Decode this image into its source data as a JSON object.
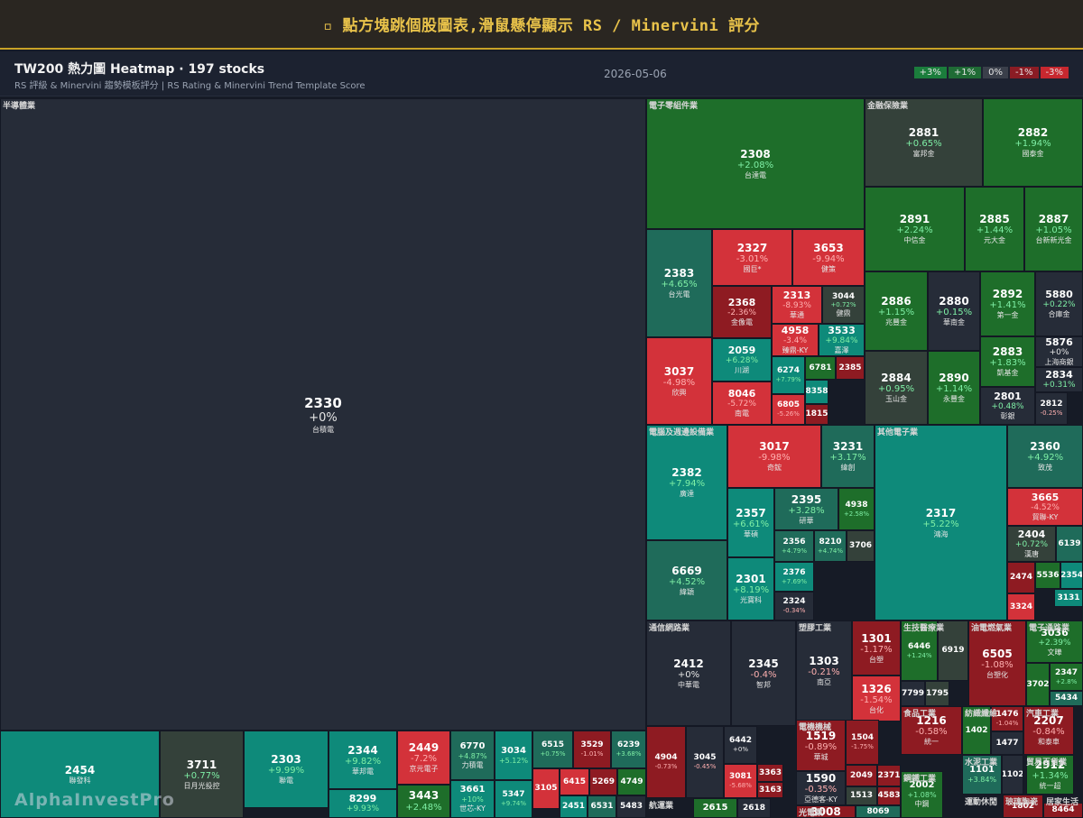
{
  "banner": {
    "icon": "▫",
    "text": "點方塊跳個股圖表,滑鼠懸停顯示 RS / Minervini 評分"
  },
  "header": {
    "title": "TW200 熱力圖 Heatmap · 197 stocks",
    "subtitle": "RS 評級 & Minervini 趨勢模板評分 | RS Rating & Minervini Trend Template Score",
    "date": "2026-05-06"
  },
  "legend": [
    {
      "label": "+3%",
      "color": "#1b7d3c"
    },
    {
      "label": "+1%",
      "color": "#1f6b35"
    },
    {
      "label": "0%",
      "color": "#3a3f4a"
    },
    {
      "label": "-1%",
      "color": "#8b1c24"
    },
    {
      "label": "-3%",
      "color": "#c7282f"
    }
  ],
  "watermark": "AlphaInvestPro",
  "sectors": [
    {
      "name": "半導體業"
    },
    {
      "name": "電子零組件業"
    },
    {
      "name": "金融保險業"
    },
    {
      "name": "電腦及週邊設備業"
    },
    {
      "name": "其他電子業"
    },
    {
      "name": "通信網路業"
    },
    {
      "name": "塑膠工業"
    },
    {
      "name": "生技醫療業"
    },
    {
      "name": "油電燃氣業"
    },
    {
      "name": "電子通路業"
    },
    {
      "name": "電機機械"
    },
    {
      "name": "食品工業"
    },
    {
      "name": "紡織纖維"
    },
    {
      "name": "汽車工業"
    },
    {
      "name": "水泥工業"
    },
    {
      "name": "貿易百貨業"
    },
    {
      "name": "鋼鐵工業"
    },
    {
      "name": "運動休閒"
    },
    {
      "name": "玻璃陶瓷"
    },
    {
      "name": "居家生活"
    },
    {
      "name": "航運業"
    },
    {
      "name": "光電業"
    }
  ],
  "tiles": [
    {
      "code": "2330",
      "chg": "+0%",
      "name": "台積電"
    },
    {
      "code": "2454",
      "chg": "",
      "name": "聯發科"
    },
    {
      "code": "3711",
      "chg": "+0.77%",
      "name": "日月光投控"
    },
    {
      "code": "2303",
      "chg": "+9.99%",
      "name": "聯電"
    },
    {
      "code": "2344",
      "chg": "+9.82%",
      "name": "華邦電"
    },
    {
      "code": "2449",
      "chg": "-7.2%",
      "name": "京元電子"
    },
    {
      "code": "6770",
      "chg": "+4.87%",
      "name": "力積電"
    },
    {
      "code": "3034",
      "chg": "+5.12%",
      "name": ""
    },
    {
      "code": "6515",
      "chg": "+0.75%",
      "name": ""
    },
    {
      "code": "3529",
      "chg": "-1.01%",
      "name": ""
    },
    {
      "code": "6239",
      "chg": "+3.68%",
      "name": ""
    },
    {
      "code": "8299",
      "chg": "+9.93%",
      "name": ""
    },
    {
      "code": "3443",
      "chg": "+2.48%",
      "name": ""
    },
    {
      "code": "3661",
      "chg": "+10%",
      "name": "世芯-KY"
    },
    {
      "code": "5347",
      "chg": "+9.74%",
      "name": ""
    },
    {
      "code": "3105",
      "chg": "",
      "name": ""
    },
    {
      "code": "6415",
      "chg": "",
      "name": ""
    },
    {
      "code": "5269",
      "chg": "",
      "name": ""
    },
    {
      "code": "4749",
      "chg": "",
      "name": ""
    },
    {
      "code": "2451",
      "chg": "",
      "name": ""
    },
    {
      "code": "6531",
      "chg": "",
      "name": ""
    },
    {
      "code": "5483",
      "chg": "",
      "name": ""
    },
    {
      "code": "2308",
      "chg": "+2.08%",
      "name": "台達電"
    },
    {
      "code": "2383",
      "chg": "+4.65%",
      "name": "台光電"
    },
    {
      "code": "2327",
      "chg": "-3.01%",
      "name": "國巨*"
    },
    {
      "code": "3653",
      "chg": "-9.94%",
      "name": "健策"
    },
    {
      "code": "2368",
      "chg": "-2.36%",
      "name": "金像電"
    },
    {
      "code": "2313",
      "chg": "-8.93%",
      "name": "華通"
    },
    {
      "code": "3044",
      "chg": "+0.72%",
      "name": "健鼎"
    },
    {
      "code": "4958",
      "chg": "-3.4%",
      "name": "臻鼎-KY"
    },
    {
      "code": "3533",
      "chg": "+9.84%",
      "name": "嘉澤"
    },
    {
      "code": "3037",
      "chg": "-4.98%",
      "name": "欣興"
    },
    {
      "code": "2059",
      "chg": "+6.28%",
      "name": "川湖"
    },
    {
      "code": "6274",
      "chg": "+7.79%",
      "name": ""
    },
    {
      "code": "6781",
      "chg": "",
      "name": ""
    },
    {
      "code": "2385",
      "chg": "",
      "name": ""
    },
    {
      "code": "8358",
      "chg": "",
      "name": ""
    },
    {
      "code": "8046",
      "chg": "-5.72%",
      "name": "南電"
    },
    {
      "code": "6805",
      "chg": "-5.26%",
      "name": ""
    },
    {
      "code": "1815",
      "chg": "",
      "name": ""
    },
    {
      "code": "2881",
      "chg": "+0.65%",
      "name": "富邦金"
    },
    {
      "code": "2882",
      "chg": "+1.94%",
      "name": "國泰金"
    },
    {
      "code": "2891",
      "chg": "+2.24%",
      "name": "中信金"
    },
    {
      "code": "2885",
      "chg": "+1.44%",
      "name": "元大金"
    },
    {
      "code": "2887",
      "chg": "+1.05%",
      "name": "台新新光金"
    },
    {
      "code": "2886",
      "chg": "+1.15%",
      "name": "兆豐金"
    },
    {
      "code": "2880",
      "chg": "+0.15%",
      "name": "華南金"
    },
    {
      "code": "2892",
      "chg": "+1.41%",
      "name": "第一金"
    },
    {
      "code": "5880",
      "chg": "+0.22%",
      "name": "合庫金"
    },
    {
      "code": "5876",
      "chg": "+0%",
      "name": "上海商銀"
    },
    {
      "code": "2883",
      "chg": "+1.83%",
      "name": "凱基金"
    },
    {
      "code": "2834",
      "chg": "+0.31%",
      "name": ""
    },
    {
      "code": "2884",
      "chg": "+0.95%",
      "name": "玉山金"
    },
    {
      "code": "2890",
      "chg": "+1.14%",
      "name": "永豐金"
    },
    {
      "code": "2801",
      "chg": "+0.48%",
      "name": "彰銀"
    },
    {
      "code": "2812",
      "chg": "-0.25%",
      "name": ""
    },
    {
      "code": "2382",
      "chg": "+7.94%",
      "name": "廣達"
    },
    {
      "code": "3017",
      "chg": "-9.98%",
      "name": "奇鋐"
    },
    {
      "code": "3231",
      "chg": "+3.17%",
      "name": "緯創"
    },
    {
      "code": "2395",
      "chg": "+3.28%",
      "name": "研華"
    },
    {
      "code": "4938",
      "chg": "+2.58%",
      "name": ""
    },
    {
      "code": "2357",
      "chg": "+6.61%",
      "name": "華碩"
    },
    {
      "code": "2356",
      "chg": "+4.79%",
      "name": ""
    },
    {
      "code": "8210",
      "chg": "+4.74%",
      "name": ""
    },
    {
      "code": "3706",
      "chg": "",
      "name": ""
    },
    {
      "code": "6669",
      "chg": "+4.52%",
      "name": "緯穎"
    },
    {
      "code": "2301",
      "chg": "+8.19%",
      "name": "光寶科"
    },
    {
      "code": "2376",
      "chg": "+7.69%",
      "name": ""
    },
    {
      "code": "2324",
      "chg": "-0.34%",
      "name": ""
    },
    {
      "code": "2317",
      "chg": "+5.22%",
      "name": "鴻海"
    },
    {
      "code": "2360",
      "chg": "+4.92%",
      "name": "致茂"
    },
    {
      "code": "3665",
      "chg": "-4.52%",
      "name": "貿聯-KY"
    },
    {
      "code": "2404",
      "chg": "+0.72%",
      "name": "漢唐"
    },
    {
      "code": "6139",
      "chg": "",
      "name": ""
    },
    {
      "code": "2474",
      "chg": "",
      "name": ""
    },
    {
      "code": "5536",
      "chg": "",
      "name": ""
    },
    {
      "code": "2354",
      "chg": "",
      "name": ""
    },
    {
      "code": "3324",
      "chg": "",
      "name": ""
    },
    {
      "code": "3131",
      "chg": "",
      "name": ""
    },
    {
      "code": "2412",
      "chg": "+0%",
      "name": "中華電"
    },
    {
      "code": "2345",
      "chg": "-0.4%",
      "name": "智邦"
    },
    {
      "code": "4904",
      "chg": "-0.73%",
      "name": ""
    },
    {
      "code": "3045",
      "chg": "-0.45%",
      "name": ""
    },
    {
      "code": "6442",
      "chg": "+0%",
      "name": ""
    },
    {
      "code": "3081",
      "chg": "-5.68%",
      "name": ""
    },
    {
      "code": "3363",
      "chg": "",
      "name": ""
    },
    {
      "code": "3163",
      "chg": "",
      "name": ""
    },
    {
      "code": "1303",
      "chg": "-0.21%",
      "name": "南亞"
    },
    {
      "code": "1301",
      "chg": "-1.17%",
      "name": "台塑"
    },
    {
      "code": "1326",
      "chg": "-1.54%",
      "name": "台化"
    },
    {
      "code": "6446",
      "chg": "+1.24%",
      "name": ""
    },
    {
      "code": "6919",
      "chg": "",
      "name": ""
    },
    {
      "code": "7799",
      "chg": "",
      "name": ""
    },
    {
      "code": "1795",
      "chg": "",
      "name": ""
    },
    {
      "code": "6505",
      "chg": "-1.08%",
      "name": "台塑化"
    },
    {
      "code": "3036",
      "chg": "+2.39%",
      "name": "文曄"
    },
    {
      "code": "3702",
      "chg": "",
      "name": ""
    },
    {
      "code": "2347",
      "chg": "+2.8%",
      "name": ""
    },
    {
      "code": "5434",
      "chg": "",
      "name": ""
    },
    {
      "code": "1519",
      "chg": "-0.89%",
      "name": "華城"
    },
    {
      "code": "1504",
      "chg": "-1.75%",
      "name": ""
    },
    {
      "code": "1590",
      "chg": "-0.35%",
      "name": "亞德客-KY"
    },
    {
      "code": "2049",
      "chg": "",
      "name": ""
    },
    {
      "code": "2371",
      "chg": "",
      "name": ""
    },
    {
      "code": "1513",
      "chg": "",
      "name": ""
    },
    {
      "code": "4583",
      "chg": "",
      "name": ""
    },
    {
      "code": "1216",
      "chg": "-0.58%",
      "name": "統一"
    },
    {
      "code": "1402",
      "chg": "",
      "name": ""
    },
    {
      "code": "1476",
      "chg": "-1.04%",
      "name": ""
    },
    {
      "code": "1477",
      "chg": "",
      "name": ""
    },
    {
      "code": "2207",
      "chg": "-0.84%",
      "name": "和泰車"
    },
    {
      "code": "1101",
      "chg": "+3.84%",
      "name": ""
    },
    {
      "code": "1102",
      "chg": "",
      "name": ""
    },
    {
      "code": "2912",
      "chg": "+1.34%",
      "name": "統一超"
    },
    {
      "code": "2002",
      "chg": "+1.08%",
      "name": "中鋼"
    },
    {
      "code": "1802",
      "chg": "",
      "name": ""
    },
    {
      "code": "8464",
      "chg": "",
      "name": ""
    },
    {
      "code": "2615",
      "chg": "",
      "name": ""
    },
    {
      "code": "2618",
      "chg": "",
      "name": ""
    },
    {
      "code": "3008",
      "chg": "",
      "name": ""
    },
    {
      "code": "8069",
      "chg": "",
      "name": ""
    }
  ],
  "colors": {
    "dark": "#262c38",
    "teal": "#0e8a7a",
    "teal_dim": "#1f6b5a",
    "green": "#1e6e2a",
    "green_br": "#1f8a34",
    "slate": "#34413a",
    "red": "#d3323a",
    "red_dk": "#8e1b22"
  }
}
